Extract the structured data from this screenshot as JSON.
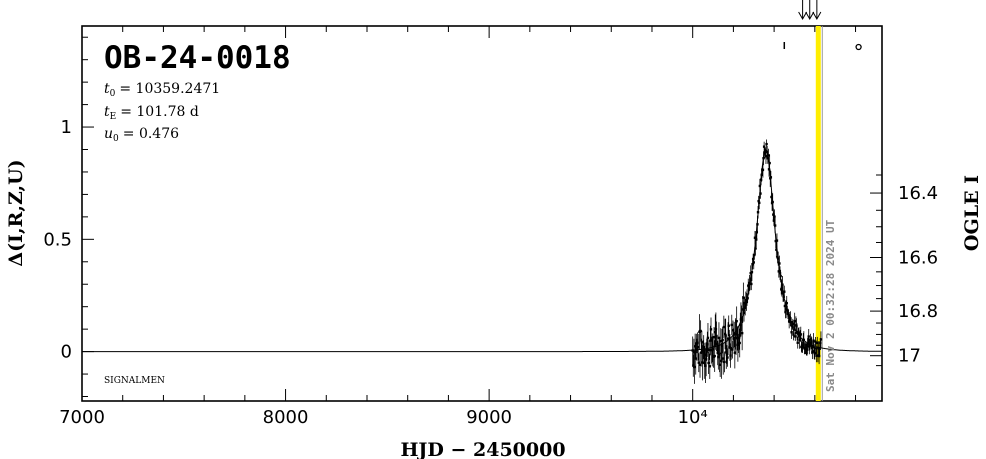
{
  "chart_data": {
    "type": "scatter",
    "title": "OB-24-0018",
    "params": [
      {
        "name": "t",
        "sub": "0",
        "value": "= 10359.2471"
      },
      {
        "name": "t",
        "sub": "E",
        "value": "= 101.78 d"
      },
      {
        "name": "u",
        "sub": "0",
        "value": "= 0.476"
      }
    ],
    "xlabel": "HJD − 2450000",
    "ylabel_left": "Δ(I,R,Z,U)",
    "ylabel_right": "OGLE I",
    "xlim": [
      7000,
      10930
    ],
    "ylim_left": [
      -0.22,
      1.45
    ],
    "x_ticks": [
      {
        "value": 7000,
        "label": "7000"
      },
      {
        "value": 8000,
        "label": "8000"
      },
      {
        "value": 9000,
        "label": "9000"
      },
      {
        "value": 10000,
        "label": "10⁴"
      }
    ],
    "y_ticks_left": [
      {
        "value": 0,
        "label": "0"
      },
      {
        "value": 0.5,
        "label": "0.5"
      },
      {
        "value": 1,
        "label": "1"
      }
    ],
    "y_ticks_right": [
      {
        "value": 16.4,
        "label": "16.4"
      },
      {
        "value": 16.6,
        "label": "16.6"
      },
      {
        "value": 16.8,
        "label": "16.8"
      },
      {
        "value": 17.0,
        "label": "17"
      }
    ],
    "baseline_mag": 16.98,
    "model_peak": 0.9,
    "data_window": [
      10000,
      10630
    ],
    "current_time": 10617,
    "current_time_label": "Sat Nov  2 00:32:28 2024 UT",
    "current_time_color": "#ffee00",
    "footer_label": "SIGNALMEN",
    "arrows": [
      10540,
      10575,
      10610
    ],
    "marker_x": [
      10450,
      10815
    ],
    "grid": false,
    "legend": "none"
  }
}
